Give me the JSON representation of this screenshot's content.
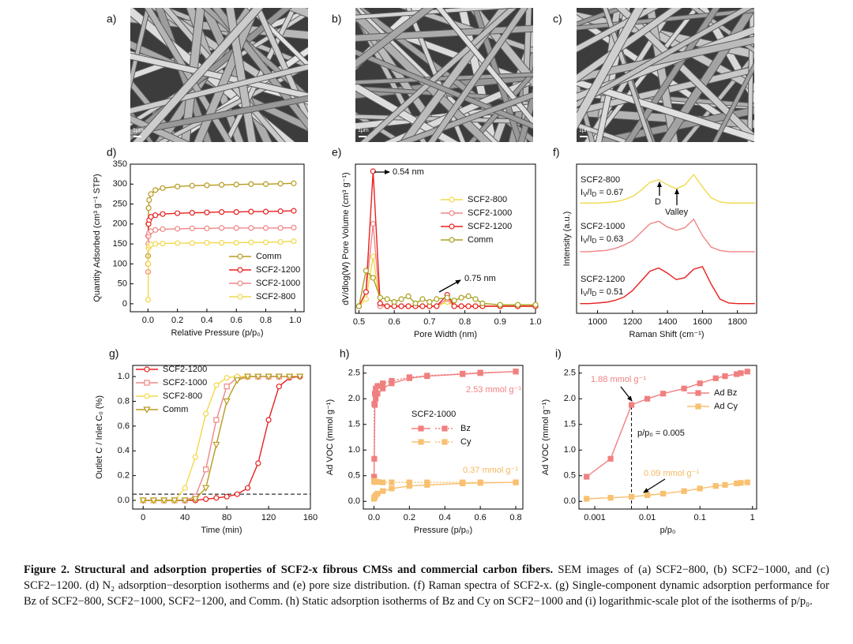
{
  "images": [
    {
      "label": "a)",
      "scale_bar": "1μm"
    },
    {
      "label": "b)",
      "scale_bar": "1μm"
    },
    {
      "label": "c)",
      "scale_bar": "1μm"
    }
  ],
  "chart_data": [
    {
      "type": "line",
      "label": "d)",
      "xlabel": "Relative Pressure (p/p₀)",
      "ylabel": "Quantity Adsorbed (cm³ g⁻¹ STP)",
      "xlim": [
        -0.12,
        1.06
      ],
      "ylim": [
        -20,
        350
      ],
      "xticks": [
        {
          "value": 0,
          "label": "0.0"
        },
        0.2,
        0.4,
        0.6,
        0.8,
        {
          "value": 1,
          "label": "1.0"
        }
      ],
      "yticks": [
        0,
        50,
        100,
        150,
        200,
        250,
        300,
        350
      ],
      "legend": "lower right",
      "x": [
        0.001,
        0.002,
        0.004,
        0.008,
        0.02,
        0.05,
        0.1,
        0.2,
        0.3,
        0.4,
        0.5,
        0.6,
        0.7,
        0.8,
        0.9,
        0.99
      ],
      "series": [
        {
          "name": "Comm",
          "color": "#b89a20",
          "marker": "circle",
          "values": [
            120,
            200,
            240,
            260,
            275,
            285,
            290,
            294,
            296,
            297,
            298,
            299,
            300,
            300,
            301,
            302
          ]
        },
        {
          "name": "SCF2-1200",
          "color": "#e8201f",
          "marker": "circle",
          "values": [
            100,
            170,
            200,
            210,
            218,
            222,
            225,
            227,
            228,
            229,
            230,
            230,
            231,
            231,
            232,
            233
          ]
        },
        {
          "name": "SCF2-1000",
          "color": "#f08585",
          "marker": "circle",
          "values": [
            80,
            150,
            170,
            178,
            182,
            185,
            187,
            188,
            189,
            189,
            190,
            190,
            190,
            190,
            190,
            191
          ]
        },
        {
          "name": "SCF2-800",
          "color": "#f2d84a",
          "marker": "circle",
          "values": [
            10,
            100,
            140,
            145,
            148,
            150,
            151,
            152,
            152,
            153,
            153,
            153,
            154,
            154,
            155,
            157
          ]
        }
      ]
    },
    {
      "type": "line",
      "label": "e)",
      "xlabel": "Pore Width (nm)",
      "ylabel": "dV/dlog(W) Pore Volume (cm³ g⁻¹)",
      "xlim": [
        0.49,
        1.0
      ],
      "ylim": [
        -0.05,
        1.0
      ],
      "xticks": [
        0.5,
        0.6,
        0.7,
        0.8,
        0.9,
        {
          "value": 1,
          "label": "1.0"
        }
      ],
      "legend": "upper right",
      "annotations": [
        {
          "text": "0.54 nm"
        },
        {
          "text": "0.75 nm"
        }
      ],
      "x": [
        0.5,
        0.52,
        0.54,
        0.56,
        0.58,
        0.6,
        0.62,
        0.64,
        0.66,
        0.68,
        0.7,
        0.72,
        0.75,
        0.77,
        0.79,
        0.81,
        0.83,
        0.85,
        0.9,
        0.95,
        1.0
      ],
      "series": [
        {
          "name": "SCF2-800",
          "color": "#f2d84a",
          "marker": "circle",
          "values": [
            0,
            0.05,
            0.35,
            0,
            0,
            0,
            0,
            0,
            0,
            0,
            0,
            0,
            0.03,
            0,
            0,
            0,
            0,
            0,
            0,
            0,
            0
          ]
        },
        {
          "name": "SCF2-1000",
          "color": "#f08585",
          "marker": "circle",
          "values": [
            0,
            0.1,
            0.58,
            0,
            0,
            0,
            0,
            0,
            0,
            0,
            0,
            0,
            0.05,
            0,
            0,
            0,
            0,
            0,
            0,
            0,
            0
          ]
        },
        {
          "name": "SCF2-1200",
          "color": "#e8201f",
          "marker": "circle",
          "values": [
            0,
            0.1,
            0.95,
            0.02,
            0,
            0,
            0,
            0,
            0,
            0,
            0,
            0,
            0.08,
            0,
            0,
            0,
            0,
            0,
            0,
            0,
            0
          ]
        },
        {
          "name": "Comm",
          "color": "#a8a020",
          "marker": "circle",
          "values": [
            0,
            0.25,
            0.2,
            0.06,
            0.05,
            0.03,
            0.05,
            0.07,
            0.02,
            0.05,
            0.03,
            0.05,
            0.06,
            0.04,
            0.06,
            0.07,
            0.05,
            0.02,
            0.01,
            0.01,
            0.01
          ]
        }
      ]
    },
    {
      "type": "line",
      "label": "f)",
      "xlabel": "Raman Shift (cm⁻¹)",
      "ylabel": "Intensity (a.u.)",
      "xlim": [
        880,
        1910
      ],
      "ylim": [
        0.6,
        2.9
      ],
      "xticks": [
        1000,
        1200,
        1400,
        1600,
        1800
      ],
      "annotations": [
        {
          "text": "D"
        },
        {
          "text": "Valley"
        }
      ],
      "x": [
        900,
        950,
        1000,
        1050,
        1100,
        1150,
        1200,
        1250,
        1300,
        1350,
        1400,
        1450,
        1500,
        1550,
        1600,
        1650,
        1700,
        1750,
        1800,
        1850,
        1900
      ],
      "series": [
        {
          "name": "SCF2-800",
          "color": "#f2d84a",
          "ratio_parts": [
            "I",
            "V",
            "/I",
            "D",
            " = 0.67"
          ],
          "values": [
            2.3,
            2.3,
            2.3,
            2.31,
            2.32,
            2.35,
            2.4,
            2.5,
            2.62,
            2.66,
            2.58,
            2.52,
            2.58,
            2.74,
            2.55,
            2.38,
            2.32,
            2.3,
            2.3,
            2.3,
            2.3
          ]
        },
        {
          "name": "SCF2-1000",
          "color": "#f08585",
          "ratio_parts": [
            "I",
            "V",
            "/I",
            "D",
            " = 0.63"
          ],
          "values": [
            1.55,
            1.55,
            1.56,
            1.57,
            1.6,
            1.65,
            1.72,
            1.85,
            1.98,
            2.02,
            1.93,
            1.88,
            1.92,
            2.05,
            1.8,
            1.62,
            1.57,
            1.55,
            1.55,
            1.55,
            1.55
          ]
        },
        {
          "name": "SCF2-1200",
          "color": "#e8201f",
          "ratio_parts": [
            "I",
            "V",
            "/I",
            "D",
            " = 0.51"
          ],
          "values": [
            0.75,
            0.75,
            0.76,
            0.77,
            0.8,
            0.85,
            0.95,
            1.1,
            1.25,
            1.3,
            1.22,
            1.12,
            1.15,
            1.28,
            1.32,
            1.05,
            0.82,
            0.76,
            0.75,
            0.75,
            0.75
          ]
        }
      ]
    },
    {
      "type": "line",
      "label": "g)",
      "xlabel": "Time (min)",
      "ylabel": "Outlet C / Inlet C₀ (%)",
      "xlim": [
        -10,
        160
      ],
      "ylim": [
        -0.07,
        1.09
      ],
      "xticks": [
        0,
        40,
        80,
        120,
        160
      ],
      "yticks": [
        {
          "value": 0,
          "label": "0.0"
        },
        0.2,
        0.4,
        0.6,
        0.8,
        {
          "value": 1,
          "label": "1.0"
        }
      ],
      "legend": "upper left",
      "hline": 0.05,
      "x": [
        0,
        10,
        20,
        30,
        40,
        50,
        60,
        70,
        80,
        90,
        100,
        110,
        120,
        130,
        140,
        150,
        160
      ],
      "series": [
        {
          "name": "SCF2-1200",
          "color": "#e8201f",
          "marker": "circle",
          "values": [
            0,
            0,
            0,
            0,
            0,
            0,
            0.01,
            0.02,
            0.03,
            0.05,
            0.1,
            0.3,
            0.65,
            0.92,
            0.99,
            1.0,
            null
          ]
        },
        {
          "name": "SCF2-1000",
          "color": "#f08585",
          "marker": "square",
          "values": [
            0,
            0,
            0,
            0,
            0,
            0.03,
            0.25,
            0.65,
            0.92,
            0.99,
            1.0,
            1.0,
            1.0,
            1.0,
            1.0,
            null,
            null
          ]
        },
        {
          "name": "SCF2-800",
          "color": "#f2d84a",
          "marker": "circle",
          "values": [
            0,
            0,
            0,
            0,
            0.1,
            0.35,
            0.7,
            0.93,
            0.99,
            1.0,
            1.0,
            null,
            null,
            null,
            null,
            null,
            null
          ]
        },
        {
          "name": "Comm",
          "color": "#b89a20",
          "marker": "triangle",
          "values": [
            0,
            0,
            0,
            0,
            0,
            0.01,
            0.1,
            0.45,
            0.8,
            0.97,
            1.0,
            1.0,
            1.0,
            1.0,
            1.0,
            1.0,
            null
          ]
        }
      ]
    },
    {
      "type": "line",
      "label": "h)",
      "xlabel": "Pressure (p/p₀)",
      "ylabel": "Ad VOC (mmol g⁻¹)",
      "xlim": [
        -0.06,
        0.84
      ],
      "ylim": [
        -0.15,
        2.65
      ],
      "xticks": [
        {
          "value": 0,
          "label": "0.0"
        },
        0.2,
        0.4,
        0.6,
        0.8
      ],
      "yticks": [
        {
          "value": 0,
          "label": "0.0"
        },
        0.5,
        {
          "value": 1,
          "label": "1.0"
        },
        1.5,
        {
          "value": 2,
          "label": "2.0"
        },
        2.5
      ],
      "legend": "center",
      "legend_title": "SCF2-1000",
      "filled": true,
      "annotations": [
        {
          "text": "2.53 mmol g⁻¹",
          "color": "#f08080"
        },
        {
          "text": "0.37 mmol g⁻¹",
          "color": "#f5b860"
        }
      ],
      "x": [
        0.0007,
        0.002,
        0.005,
        0.01,
        0.02,
        0.05,
        0.1,
        0.2,
        0.3,
        0.5,
        0.6,
        0.8
      ],
      "series": [
        {
          "name": "Bz",
          "color": "#f08080",
          "marker": "square",
          "adsorption": [
            0.48,
            0.83,
            1.88,
            2.0,
            2.1,
            2.2,
            2.3,
            2.4,
            2.44,
            2.48,
            2.5,
            2.53
          ],
          "desorption": [
            0.45,
            1.9,
            2.1,
            2.2,
            2.25,
            2.3,
            2.35,
            2.42,
            2.45,
            2.49,
            2.51,
            2.53
          ]
        },
        {
          "name": "Cy",
          "color": "#f8c070",
          "marker": "square",
          "adsorption": [
            0.05,
            0.07,
            0.09,
            0.12,
            0.15,
            0.2,
            0.25,
            0.3,
            0.32,
            0.35,
            0.36,
            0.37
          ],
          "desorption": [
            0.4,
            0.38,
            0.38,
            0.38,
            0.38,
            0.37,
            0.37,
            0.37,
            0.37,
            0.37,
            0.37,
            0.37
          ]
        }
      ]
    },
    {
      "type": "line",
      "label": "i)",
      "xlabel": "p/p₀",
      "ylabel": "Ad VOC (mmol g⁻¹)",
      "xscale": "log",
      "xlim": [
        0.0005,
        1.2
      ],
      "ylim": [
        -0.15,
        2.65
      ],
      "xticks": [
        0.001,
        0.01,
        0.1,
        1
      ],
      "yticks": [
        {
          "value": 0,
          "label": "0.0"
        },
        0.5,
        {
          "value": 1,
          "label": "1.0"
        },
        1.5,
        {
          "value": 2,
          "label": "2.0"
        },
        2.5
      ],
      "legend": "center right",
      "filled": true,
      "vline": 0.005,
      "annotations": [
        {
          "text": "1.88 mmol g⁻¹",
          "color": "#f08080"
        },
        {
          "text": "p/p₀ = 0.005"
        },
        {
          "text": "0.09 mmol g⁻¹",
          "color": "#f5b860"
        }
      ],
      "x": [
        0.0007,
        0.002,
        0.005,
        0.01,
        0.02,
        0.05,
        0.1,
        0.2,
        0.3,
        0.5,
        0.6,
        0.8
      ],
      "series": [
        {
          "name": "Ad Bz",
          "color": "#f08080",
          "marker": "square",
          "values": [
            0.48,
            0.83,
            1.88,
            2.0,
            2.1,
            2.2,
            2.3,
            2.4,
            2.44,
            2.48,
            2.5,
            2.53
          ]
        },
        {
          "name": "Ad Cy",
          "color": "#f8c070",
          "marker": "square",
          "values": [
            0.05,
            0.07,
            0.09,
            0.12,
            0.15,
            0.2,
            0.25,
            0.3,
            0.32,
            0.35,
            0.36,
            0.37
          ]
        }
      ]
    }
  ],
  "caption": {
    "label": "Figure 2. Structural and adsorption properties of SCF2-x fibrous CMSs and commercial carbon fibers.",
    "text": "SEM images of (a) SCF2−800, (b) SCF2−1000, and (c) SCF2−1200. (d) N₂ adsorption−desorption isotherms and (e) pore size distribution. (f) Raman spectra of SCF2-x. (g) Single-component dynamic adsorption performance for Bz of SCF2−800, SCF2−1000, SCF2−1200, and Comm. (h) Static adsorption isotherms of Bz and Cy on SCF2−1000 and (i) logarithmic-scale plot of the isotherms of p/p₀."
  }
}
